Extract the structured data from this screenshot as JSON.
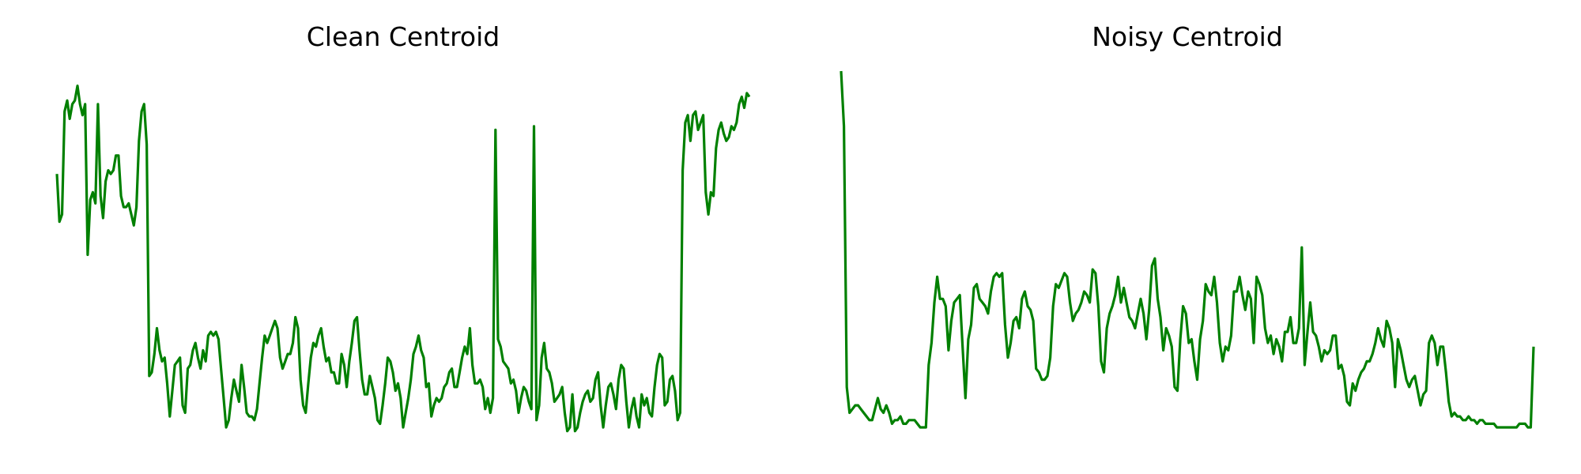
{
  "chart_data": [
    {
      "type": "line",
      "title": "Clean Centroid",
      "xlabel": "",
      "ylabel": "",
      "axes_visible": false,
      "grid": false,
      "color": "#008000",
      "xlim": [
        0,
        210
      ],
      "ylim": [
        0,
        1
      ],
      "y": [
        0.72,
        0.59,
        0.61,
        0.89,
        0.92,
        0.87,
        0.91,
        0.92,
        0.96,
        0.91,
        0.88,
        0.91,
        0.5,
        0.65,
        0.67,
        0.64,
        0.91,
        0.66,
        0.6,
        0.7,
        0.73,
        0.72,
        0.73,
        0.77,
        0.77,
        0.66,
        0.63,
        0.63,
        0.64,
        0.61,
        0.58,
        0.63,
        0.81,
        0.89,
        0.91,
        0.8,
        0.17,
        0.18,
        0.23,
        0.3,
        0.24,
        0.21,
        0.22,
        0.15,
        0.06,
        0.13,
        0.2,
        0.21,
        0.22,
        0.09,
        0.07,
        0.19,
        0.2,
        0.24,
        0.26,
        0.22,
        0.19,
        0.24,
        0.21,
        0.28,
        0.29,
        0.28,
        0.29,
        0.27,
        0.19,
        0.11,
        0.03,
        0.05,
        0.11,
        0.16,
        0.13,
        0.1,
        0.2,
        0.14,
        0.07,
        0.06,
        0.06,
        0.05,
        0.08,
        0.15,
        0.22,
        0.28,
        0.26,
        0.28,
        0.3,
        0.32,
        0.3,
        0.22,
        0.19,
        0.21,
        0.23,
        0.23,
        0.26,
        0.33,
        0.3,
        0.16,
        0.09,
        0.07,
        0.15,
        0.22,
        0.26,
        0.25,
        0.28,
        0.3,
        0.25,
        0.21,
        0.22,
        0.18,
        0.18,
        0.15,
        0.15,
        0.23,
        0.2,
        0.14,
        0.21,
        0.26,
        0.32,
        0.33,
        0.24,
        0.16,
        0.12,
        0.12,
        0.17,
        0.14,
        0.11,
        0.05,
        0.04,
        0.09,
        0.15,
        0.22,
        0.21,
        0.18,
        0.13,
        0.15,
        0.11,
        0.03,
        0.07,
        0.11,
        0.16,
        0.23,
        0.25,
        0.28,
        0.24,
        0.22,
        0.14,
        0.15,
        0.06,
        0.09,
        0.11,
        0.1,
        0.11,
        0.14,
        0.15,
        0.18,
        0.19,
        0.14,
        0.14,
        0.18,
        0.22,
        0.25,
        0.23,
        0.3,
        0.2,
        0.15,
        0.15,
        0.16,
        0.14,
        0.08,
        0.11,
        0.07,
        0.11,
        0.84,
        0.27,
        0.25,
        0.21,
        0.2,
        0.19,
        0.15,
        0.16,
        0.13,
        0.07,
        0.11,
        0.14,
        0.13,
        0.1,
        0.08,
        0.85,
        0.05,
        0.09,
        0.22,
        0.26,
        0.19,
        0.18,
        0.15,
        0.1,
        0.11,
        0.12,
        0.14,
        0.07,
        0.02,
        0.03,
        0.12,
        0.02,
        0.03,
        0.07,
        0.1,
        0.12,
        0.13,
        0.1,
        0.11,
        0.16,
        0.18,
        0.09,
        0.03,
        0.09,
        0.14,
        0.15,
        0.12,
        0.08,
        0.16,
        0.2,
        0.19,
        0.1,
        0.03,
        0.08,
        0.11,
        0.06,
        0.03,
        0.12,
        0.09,
        0.11,
        0.07,
        0.06,
        0.14,
        0.2,
        0.23,
        0.22,
        0.09,
        0.1,
        0.16,
        0.17,
        0.13,
        0.05,
        0.07,
        0.73,
        0.86,
        0.88,
        0.81,
        0.88,
        0.89,
        0.84,
        0.86,
        0.88,
        0.67,
        0.61,
        0.67,
        0.66,
        0.79,
        0.84,
        0.86,
        0.83,
        0.81,
        0.82,
        0.85,
        0.84,
        0.86,
        0.91,
        0.93,
        0.9,
        0.94,
        0.93
      ],
      "series": []
    },
    {
      "type": "line",
      "title": "Noisy Centroid",
      "xlabel": "",
      "ylabel": "",
      "axes_visible": false,
      "grid": false,
      "color": "#008000",
      "xlim": [
        0,
        210
      ],
      "ylim": [
        0,
        1
      ],
      "y": [
        1.0,
        0.85,
        0.14,
        0.07,
        0.08,
        0.09,
        0.09,
        0.08,
        0.07,
        0.06,
        0.05,
        0.05,
        0.08,
        0.11,
        0.08,
        0.07,
        0.09,
        0.07,
        0.04,
        0.05,
        0.05,
        0.06,
        0.04,
        0.04,
        0.05,
        0.05,
        0.05,
        0.04,
        0.03,
        0.03,
        0.03,
        0.2,
        0.26,
        0.37,
        0.44,
        0.38,
        0.38,
        0.36,
        0.24,
        0.32,
        0.37,
        0.38,
        0.39,
        0.25,
        0.11,
        0.27,
        0.31,
        0.41,
        0.42,
        0.38,
        0.37,
        0.36,
        0.34,
        0.4,
        0.44,
        0.45,
        0.44,
        0.45,
        0.31,
        0.22,
        0.26,
        0.32,
        0.33,
        0.3,
        0.38,
        0.4,
        0.36,
        0.35,
        0.32,
        0.19,
        0.18,
        0.16,
        0.16,
        0.17,
        0.22,
        0.36,
        0.42,
        0.41,
        0.43,
        0.45,
        0.44,
        0.37,
        0.32,
        0.34,
        0.35,
        0.37,
        0.4,
        0.39,
        0.37,
        0.46,
        0.45,
        0.36,
        0.21,
        0.18,
        0.3,
        0.34,
        0.36,
        0.39,
        0.44,
        0.37,
        0.41,
        0.37,
        0.33,
        0.32,
        0.3,
        0.34,
        0.38,
        0.34,
        0.27,
        0.35,
        0.47,
        0.49,
        0.38,
        0.33,
        0.24,
        0.3,
        0.28,
        0.25,
        0.14,
        0.13,
        0.27,
        0.36,
        0.34,
        0.26,
        0.27,
        0.21,
        0.16,
        0.27,
        0.32,
        0.42,
        0.4,
        0.39,
        0.44,
        0.37,
        0.26,
        0.21,
        0.25,
        0.24,
        0.28,
        0.4,
        0.4,
        0.44,
        0.39,
        0.35,
        0.4,
        0.38,
        0.26,
        0.44,
        0.42,
        0.39,
        0.3,
        0.26,
        0.28,
        0.23,
        0.27,
        0.25,
        0.21,
        0.29,
        0.29,
        0.33,
        0.26,
        0.26,
        0.3,
        0.52,
        0.2,
        0.29,
        0.37,
        0.29,
        0.28,
        0.25,
        0.21,
        0.24,
        0.23,
        0.24,
        0.28,
        0.28,
        0.19,
        0.2,
        0.17,
        0.1,
        0.09,
        0.15,
        0.13,
        0.16,
        0.18,
        0.19,
        0.21,
        0.21,
        0.23,
        0.26,
        0.3,
        0.27,
        0.25,
        0.32,
        0.3,
        0.26,
        0.14,
        0.27,
        0.24,
        0.2,
        0.16,
        0.14,
        0.16,
        0.17,
        0.13,
        0.09,
        0.12,
        0.13,
        0.26,
        0.28,
        0.26,
        0.2,
        0.25,
        0.25,
        0.18,
        0.1,
        0.06,
        0.07,
        0.06,
        0.06,
        0.05,
        0.05,
        0.06,
        0.05,
        0.05,
        0.04,
        0.05,
        0.05,
        0.04,
        0.04,
        0.04,
        0.04,
        0.03,
        0.03,
        0.03,
        0.03,
        0.03,
        0.03,
        0.03,
        0.03,
        0.04,
        0.04,
        0.04,
        0.03,
        0.03,
        0.25
      ],
      "series": []
    }
  ]
}
